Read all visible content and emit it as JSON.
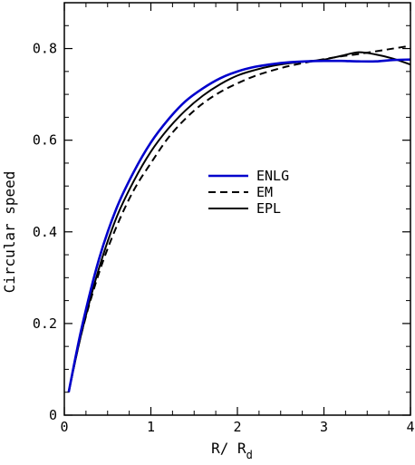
{
  "chart_data": {
    "type": "line",
    "xlabel": "R/ R",
    "xlabel_sub": "d",
    "ylabel": "Circular speed",
    "xlim": [
      0,
      4
    ],
    "ylim": [
      0,
      0.9
    ],
    "x_ticks": [
      0,
      1,
      2,
      3,
      4
    ],
    "x_tick_labels": [
      "0",
      "1",
      "2",
      "3",
      "4"
    ],
    "y_ticks": [
      0,
      0.2,
      0.4,
      0.6,
      0.8
    ],
    "y_tick_labels": [
      "0",
      "0.2",
      "0.4",
      "0.6",
      "0.8"
    ],
    "grid": false,
    "legend_position": "center-right",
    "series": [
      {
        "name": "ENLG",
        "color": "#0000cc",
        "dash": "solid",
        "x": [
          0.05,
          0.2,
          0.4,
          0.6,
          0.8,
          1.0,
          1.2,
          1.4,
          1.6,
          1.8,
          2.0,
          2.2,
          2.4,
          2.6,
          2.8,
          3.0,
          3.2,
          3.4,
          3.6,
          3.8,
          4.0
        ],
        "y": [
          0.05,
          0.19,
          0.34,
          0.45,
          0.53,
          0.595,
          0.645,
          0.685,
          0.713,
          0.735,
          0.75,
          0.76,
          0.766,
          0.77,
          0.772,
          0.773,
          0.773,
          0.772,
          0.772,
          0.775,
          0.776
        ]
      },
      {
        "name": "EM",
        "color": "#000000",
        "dash": "dashed",
        "x": [
          0.05,
          0.2,
          0.4,
          0.6,
          0.8,
          1.0,
          1.2,
          1.4,
          1.6,
          1.8,
          2.0,
          2.2,
          2.4,
          2.6,
          2.8,
          3.0,
          3.2,
          3.4,
          3.6,
          3.8,
          4.0
        ],
        "y": [
          0.05,
          0.18,
          0.31,
          0.41,
          0.49,
          0.55,
          0.605,
          0.647,
          0.68,
          0.705,
          0.724,
          0.74,
          0.752,
          0.762,
          0.77,
          0.777,
          0.783,
          0.788,
          0.794,
          0.8,
          0.806
        ]
      },
      {
        "name": "EPL",
        "color": "#000000",
        "dash": "solid",
        "x": [
          0.05,
          0.2,
          0.4,
          0.6,
          0.8,
          1.0,
          1.2,
          1.4,
          1.6,
          1.8,
          2.0,
          2.2,
          2.4,
          2.6,
          2.8,
          3.0,
          3.2,
          3.4,
          3.6,
          3.8,
          4.0
        ],
        "y": [
          0.05,
          0.18,
          0.32,
          0.43,
          0.51,
          0.575,
          0.625,
          0.665,
          0.697,
          0.722,
          0.741,
          0.753,
          0.762,
          0.768,
          0.772,
          0.776,
          0.784,
          0.792,
          0.787,
          0.778,
          0.765
        ]
      }
    ]
  }
}
